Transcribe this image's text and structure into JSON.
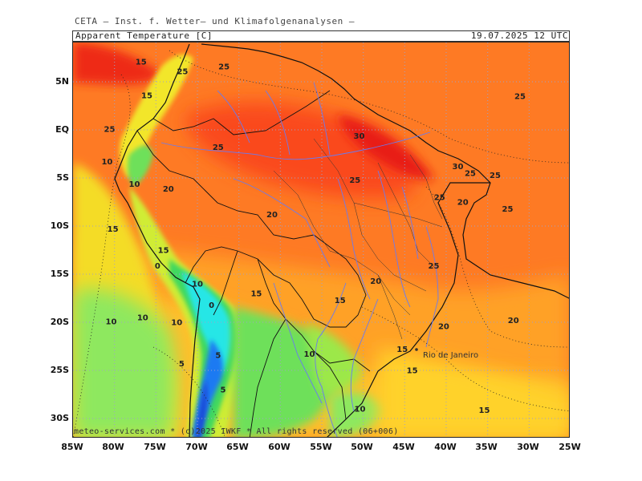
{
  "header": {
    "institute": "CETA — Inst. f. Wetter— und Klimafolgenanalysen —",
    "parameter": "Apparent Temperature [C]",
    "valid_time": "19.07.2025 12 UTC"
  },
  "footer": "meteo-services.com * (c)2025 IWKF * All rights reserved (06+006)",
  "axes": {
    "lat_labels": [
      "5N",
      "EQ",
      "5S",
      "10S",
      "15S",
      "20S",
      "25S",
      "30S"
    ],
    "lon_labels": [
      "85W",
      "80W",
      "75W",
      "70W",
      "65W",
      "60W",
      "55W",
      "50W",
      "45W",
      "40W",
      "35W",
      "30W",
      "25W"
    ]
  },
  "city": "Rio de Janeiro",
  "contour_labels": [
    {
      "text": "15",
      "lon": -76.8,
      "lat": 6.8
    },
    {
      "text": "25",
      "lon": -71.8,
      "lat": 5.8
    },
    {
      "text": "25",
      "lon": -66.8,
      "lat": 6.3
    },
    {
      "text": "15",
      "lon": -76.1,
      "lat": 3.3
    },
    {
      "text": "25",
      "lon": -80.6,
      "lat": -0.2
    },
    {
      "text": "25",
      "lon": -31.1,
      "lat": 3.2
    },
    {
      "text": "30",
      "lon": -50.5,
      "lat": -0.9
    },
    {
      "text": "25",
      "lon": -67.5,
      "lat": -2.1
    },
    {
      "text": "10",
      "lon": -80.9,
      "lat": -3.6
    },
    {
      "text": "30",
      "lon": -38.6,
      "lat": -4.1
    },
    {
      "text": "25",
      "lon": -37.1,
      "lat": -4.8
    },
    {
      "text": "25",
      "lon": -34.1,
      "lat": -5.0
    },
    {
      "text": "25",
      "lon": -51.0,
      "lat": -5.5
    },
    {
      "text": "10",
      "lon": -77.6,
      "lat": -5.9
    },
    {
      "text": "20",
      "lon": -73.5,
      "lat": -6.4
    },
    {
      "text": "25",
      "lon": -40.8,
      "lat": -7.3
    },
    {
      "text": "20",
      "lon": -38.0,
      "lat": -7.8
    },
    {
      "text": "25",
      "lon": -32.6,
      "lat": -8.5
    },
    {
      "text": "20",
      "lon": -61.0,
      "lat": -9.1
    },
    {
      "text": "15",
      "lon": -80.2,
      "lat": -10.6
    },
    {
      "text": "15",
      "lon": -74.1,
      "lat": -12.8
    },
    {
      "text": "0",
      "lon": -74.8,
      "lat": -14.4
    },
    {
      "text": "25",
      "lon": -41.5,
      "lat": -14.4
    },
    {
      "text": "10",
      "lon": -70.0,
      "lat": -16.3
    },
    {
      "text": "20",
      "lon": -48.5,
      "lat": -16.0
    },
    {
      "text": "15",
      "lon": -62.9,
      "lat": -17.3
    },
    {
      "text": "15",
      "lon": -52.8,
      "lat": -18.0
    },
    {
      "text": "0",
      "lon": -68.3,
      "lat": -18.5
    },
    {
      "text": "10",
      "lon": -80.4,
      "lat": -20.2
    },
    {
      "text": "10",
      "lon": -76.6,
      "lat": -19.8
    },
    {
      "text": "10",
      "lon": -72.5,
      "lat": -20.3
    },
    {
      "text": "20",
      "lon": -40.3,
      "lat": -20.7
    },
    {
      "text": "20",
      "lon": -31.9,
      "lat": -20.1
    },
    {
      "text": "15",
      "lon": -45.3,
      "lat": -23.1
    },
    {
      "text": "10",
      "lon": -56.5,
      "lat": -23.6
    },
    {
      "text": "5",
      "lon": -67.5,
      "lat": -23.7
    },
    {
      "text": "5",
      "lon": -71.9,
      "lat": -24.6
    },
    {
      "text": "15",
      "lon": -44.1,
      "lat": -25.3
    },
    {
      "text": "5",
      "lon": -66.9,
      "lat": -27.3
    },
    {
      "text": "15",
      "lon": -35.4,
      "lat": -29.4
    },
    {
      "text": "10",
      "lon": -50.4,
      "lat": -29.3
    }
  ],
  "colors": {
    "warm": "#fe7a24",
    "hot": "#fa3d16",
    "very_hot": "#e80c18",
    "mild": "#ffaa2a",
    "cool_yellow": "#f2e62a",
    "yellow_green": "#d0ec36",
    "green": "#6ee05a",
    "light_green": "#8ee85e",
    "cyan": "#25e6e6",
    "blue": "#1f7af2",
    "dark_blue": "#1a4ad6",
    "river": "#6a7af0",
    "border": "#111111",
    "grid": "#a0a0c8"
  }
}
